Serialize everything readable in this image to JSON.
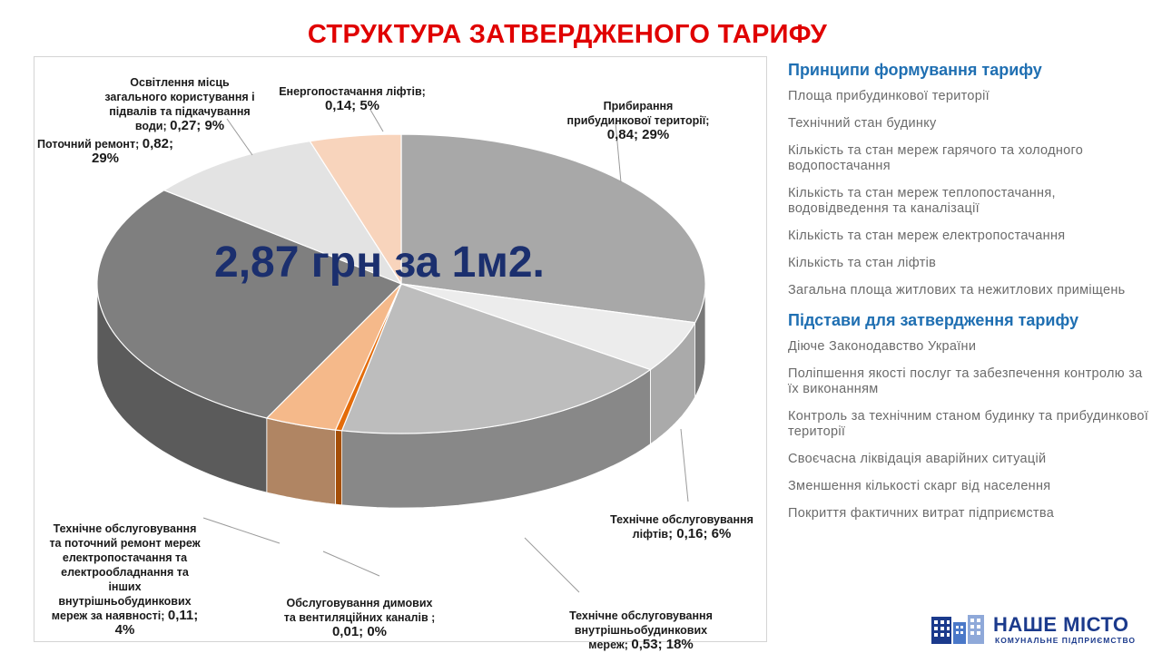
{
  "title": "СТРУКТУРА ЗАТВЕРДЖЕНОГО ТАРИФУ",
  "center_text": "2,87 грн за 1м2.",
  "chart_data": {
    "type": "pie",
    "title": "",
    "slices": [
      {
        "name": "Прибирання прибудинкової території",
        "value": 0.84,
        "percent": 29,
        "color": "#a8a8a8"
      },
      {
        "name": "Технічне обслуговування ліфтів",
        "value": 0.16,
        "percent": 6,
        "color": "#ececec"
      },
      {
        "name": "Технічне обслуговування внутрішньобудинкових мереж",
        "value": 0.53,
        "percent": 18,
        "color": "#bdbdbd"
      },
      {
        "name": "Обслуговування димових та вентиляційних каналів",
        "value": 0.01,
        "percent": 0,
        "color": "#e46c0a"
      },
      {
        "name": "Технічне обслуговування та поточний ремонт мереж електропостачання та електрообладнання та інших внутрішньобудинкових мереж за наявності",
        "value": 0.11,
        "percent": 4,
        "color": "#f5b98a"
      },
      {
        "name": "Поточний ремонт",
        "value": 0.82,
        "percent": 29,
        "color": "#7f7f7f"
      },
      {
        "name": "Освітлення місць загального користування і підвалів та підкачування води",
        "value": 0.27,
        "percent": 9,
        "color": "#e3e3e3"
      },
      {
        "name": "Енергопостачання ліфтів",
        "value": 0.14,
        "percent": 5,
        "color": "#f8d4bc"
      }
    ]
  },
  "labels": {
    "prybyrannia": {
      "text": "Прибирання\nприбудинкової території;",
      "num": "0,84; 29%"
    },
    "lifty": {
      "text": "Технічне обслуговування\nліфтів",
      "num": "; 0,16; 6%"
    },
    "merezhi": {
      "text": "Технічне обслуговування\nвнутрішньобудинкових\nмереж;",
      "num": "0,53; 18%"
    },
    "dymovi": {
      "text": "Обслуговування димових\nта вентиляційних каналів ;",
      "num": "0,01; 0%"
    },
    "elektro": {
      "text": "Технічне обслуговування\nта поточний ремонт мереж\nелектропостачання та\nелектрообладнання та\nінших\nвнутрішньобудинкових\nмереж за наявності;",
      "num": "0,11;\n4%"
    },
    "remont": {
      "text": "Поточний ремонт;",
      "num": "0,82;\n29%"
    },
    "osvitlennia": {
      "text": "Освітлення місць\nзагального користування і\nпідвалів та підкачування\nводи;",
      "num": "0,27; 9%"
    },
    "energo": {
      "text": "Енергопостачання ліфтів;",
      "num": "0,14; 5%"
    }
  },
  "right": {
    "principles_header": "Принципи формування тарифу",
    "principles": [
      "Площа прибудинкової території",
      "Технічний стан будинку",
      "Кількість та стан мереж гарячого та холодного водопостачання",
      "Кількість та стан мереж теплопостачання, водовідведення та каналізації",
      "Кількість та стан мереж електропостачання",
      "Кількість та стан ліфтів",
      "Загальна площа житлових та нежитлових приміщень"
    ],
    "grounds_header": "Підстави для затвердження тарифу",
    "grounds": [
      "Діюче Законодавство України",
      "Поліпшення якості послуг та забезпечення контролю за їх виконанням",
      "Контроль за технічним станом будинку та прибудинкової території",
      "Своєчасна ліквідація аварійних ситуацій",
      "Зменшення кількості скарг від населення",
      "Покриття фактичних витрат підприємства"
    ]
  },
  "logo": {
    "name": "НАШЕ МІСТО",
    "subtitle": "КОМУНАЛЬНЕ ПІДПРИЄМСТВО"
  }
}
